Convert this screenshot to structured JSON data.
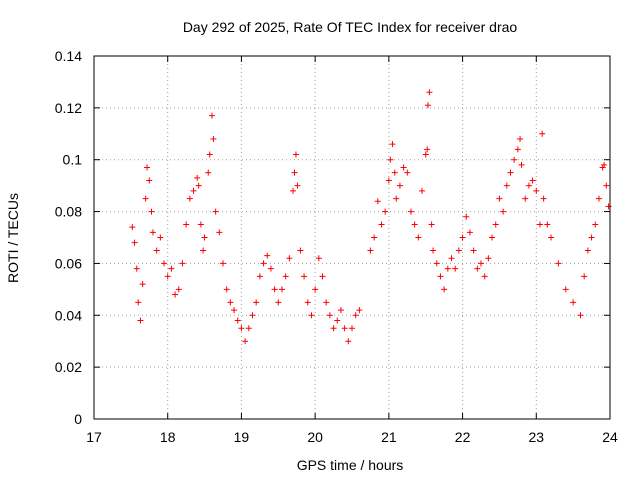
{
  "chart_data": {
    "type": "scatter",
    "title": "Day 292 of 2025, Rate Of TEC Index for receiver drao",
    "xlabel": "GPS time / hours",
    "ylabel": "ROTI / TECUs",
    "xlim": [
      17,
      24
    ],
    "ylim": [
      0,
      0.14
    ],
    "grid": true,
    "marker": "+",
    "x_ticks": [
      17,
      18,
      19,
      20,
      21,
      22,
      23,
      24
    ],
    "x_tick_labels": [
      "17",
      "18",
      "19",
      "20",
      "21",
      "22",
      "23",
      "24"
    ],
    "y_ticks": [
      0,
      0.02,
      0.04,
      0.06,
      0.08,
      0.1,
      0.12,
      0.14
    ],
    "y_tick_labels": [
      "0",
      "0.02",
      "0.04",
      "0.06",
      "0.08",
      "0.1",
      "0.12",
      "0.14"
    ],
    "series": [
      {
        "name": "ROTI",
        "color": "#ff0000",
        "points": [
          [
            17.52,
            0.074
          ],
          [
            17.55,
            0.068
          ],
          [
            17.58,
            0.058
          ],
          [
            17.6,
            0.045
          ],
          [
            17.63,
            0.038
          ],
          [
            17.66,
            0.052
          ],
          [
            17.7,
            0.085
          ],
          [
            17.72,
            0.097
          ],
          [
            17.75,
            0.092
          ],
          [
            17.78,
            0.08
          ],
          [
            17.8,
            0.072
          ],
          [
            17.85,
            0.065
          ],
          [
            17.9,
            0.07
          ],
          [
            17.95,
            0.06
          ],
          [
            18.0,
            0.055
          ],
          [
            18.05,
            0.058
          ],
          [
            18.1,
            0.048
          ],
          [
            18.15,
            0.05
          ],
          [
            18.2,
            0.06
          ],
          [
            18.25,
            0.075
          ],
          [
            18.3,
            0.085
          ],
          [
            18.35,
            0.088
          ],
          [
            18.4,
            0.093
          ],
          [
            18.42,
            0.09
          ],
          [
            18.45,
            0.075
          ],
          [
            18.48,
            0.065
          ],
          [
            18.5,
            0.07
          ],
          [
            18.55,
            0.095
          ],
          [
            18.57,
            0.102
          ],
          [
            18.6,
            0.117
          ],
          [
            18.62,
            0.108
          ],
          [
            18.65,
            0.08
          ],
          [
            18.7,
            0.072
          ],
          [
            18.75,
            0.06
          ],
          [
            18.8,
            0.05
          ],
          [
            18.85,
            0.045
          ],
          [
            18.9,
            0.042
          ],
          [
            18.95,
            0.038
          ],
          [
            19.0,
            0.035
          ],
          [
            19.05,
            0.03
          ],
          [
            19.1,
            0.035
          ],
          [
            19.15,
            0.04
          ],
          [
            19.2,
            0.045
          ],
          [
            19.25,
            0.055
          ],
          [
            19.3,
            0.06
          ],
          [
            19.35,
            0.063
          ],
          [
            19.4,
            0.058
          ],
          [
            19.45,
            0.05
          ],
          [
            19.5,
            0.045
          ],
          [
            19.55,
            0.05
          ],
          [
            19.6,
            0.055
          ],
          [
            19.65,
            0.062
          ],
          [
            19.7,
            0.088
          ],
          [
            19.72,
            0.095
          ],
          [
            19.74,
            0.102
          ],
          [
            19.76,
            0.09
          ],
          [
            19.8,
            0.065
          ],
          [
            19.85,
            0.055
          ],
          [
            19.9,
            0.045
          ],
          [
            19.95,
            0.04
          ],
          [
            20.0,
            0.05
          ],
          [
            20.05,
            0.062
          ],
          [
            20.1,
            0.055
          ],
          [
            20.15,
            0.045
          ],
          [
            20.2,
            0.04
          ],
          [
            20.25,
            0.035
          ],
          [
            20.3,
            0.038
          ],
          [
            20.35,
            0.042
          ],
          [
            20.4,
            0.035
          ],
          [
            20.45,
            0.03
          ],
          [
            20.5,
            0.035
          ],
          [
            20.55,
            0.04
          ],
          [
            20.6,
            0.042
          ],
          [
            20.75,
            0.065
          ],
          [
            20.8,
            0.07
          ],
          [
            20.85,
            0.084
          ],
          [
            20.9,
            0.075
          ],
          [
            20.95,
            0.08
          ],
          [
            21.0,
            0.092
          ],
          [
            21.02,
            0.1
          ],
          [
            21.05,
            0.106
          ],
          [
            21.08,
            0.095
          ],
          [
            21.1,
            0.085
          ],
          [
            21.15,
            0.09
          ],
          [
            21.2,
            0.097
          ],
          [
            21.25,
            0.095
          ],
          [
            21.3,
            0.08
          ],
          [
            21.35,
            0.075
          ],
          [
            21.4,
            0.07
          ],
          [
            21.45,
            0.088
          ],
          [
            21.5,
            0.102
          ],
          [
            21.52,
            0.104
          ],
          [
            21.53,
            0.121
          ],
          [
            21.55,
            0.126
          ],
          [
            21.58,
            0.075
          ],
          [
            21.6,
            0.065
          ],
          [
            21.65,
            0.06
          ],
          [
            21.7,
            0.055
          ],
          [
            21.75,
            0.05
          ],
          [
            21.8,
            0.058
          ],
          [
            21.85,
            0.062
          ],
          [
            21.9,
            0.058
          ],
          [
            21.95,
            0.065
          ],
          [
            22.0,
            0.07
          ],
          [
            22.05,
            0.078
          ],
          [
            22.1,
            0.072
          ],
          [
            22.15,
            0.065
          ],
          [
            22.2,
            0.058
          ],
          [
            22.25,
            0.06
          ],
          [
            22.3,
            0.055
          ],
          [
            22.35,
            0.062
          ],
          [
            22.4,
            0.07
          ],
          [
            22.45,
            0.075
          ],
          [
            22.5,
            0.085
          ],
          [
            22.55,
            0.08
          ],
          [
            22.6,
            0.09
          ],
          [
            22.65,
            0.095
          ],
          [
            22.7,
            0.1
          ],
          [
            22.75,
            0.104
          ],
          [
            22.78,
            0.108
          ],
          [
            22.8,
            0.098
          ],
          [
            22.85,
            0.085
          ],
          [
            22.9,
            0.09
          ],
          [
            22.95,
            0.092
          ],
          [
            23.0,
            0.088
          ],
          [
            23.05,
            0.075
          ],
          [
            23.08,
            0.11
          ],
          [
            23.1,
            0.085
          ],
          [
            23.15,
            0.075
          ],
          [
            23.2,
            0.07
          ],
          [
            23.3,
            0.06
          ],
          [
            23.4,
            0.05
          ],
          [
            23.5,
            0.045
          ],
          [
            23.6,
            0.04
          ],
          [
            23.65,
            0.055
          ],
          [
            23.7,
            0.065
          ],
          [
            23.75,
            0.07
          ],
          [
            23.8,
            0.075
          ],
          [
            23.85,
            0.085
          ],
          [
            23.9,
            0.097
          ],
          [
            23.92,
            0.098
          ],
          [
            23.95,
            0.09
          ],
          [
            23.98,
            0.082
          ]
        ]
      }
    ]
  }
}
